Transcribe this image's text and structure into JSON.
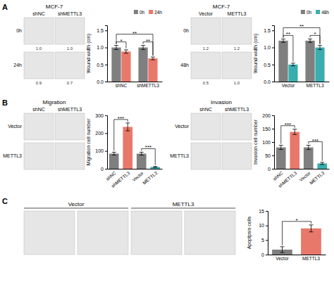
{
  "chart_data": [
    {
      "type": "bar",
      "panel_label": "A",
      "title": "MCF-7",
      "image_columns": [
        "shNC",
        "shMETTL3"
      ],
      "image_rows": [
        "0h",
        "24h"
      ],
      "image_labels": [
        "1.0",
        "1.0",
        "0.9",
        "0.7"
      ],
      "categories": [
        "shNC",
        "shMETTL3"
      ],
      "series": [
        {
          "name": "0h",
          "color": "#7f7f7f",
          "values": [
            1.0,
            1.0
          ],
          "errors": [
            0.06,
            0.06
          ]
        },
        {
          "name": "24h",
          "color": "#e8786a",
          "values": [
            0.88,
            0.68
          ],
          "errors": [
            0.05,
            0.04
          ]
        }
      ],
      "y_label": "Wound width (cm)",
      "ylim": [
        0,
        1.65
      ],
      "yticks": [
        {
          "value": 0,
          "label": "0.0"
        },
        0.5,
        {
          "value": 1,
          "label": "1.0"
        },
        1.5
      ],
      "legend": "upper right",
      "annotations": [
        {
          "text": "*",
          "categories": [
            "shNC"
          ]
        },
        {
          "text": "**",
          "categories": [
            "shMETTL3"
          ]
        },
        {
          "text": "**",
          "categories": [
            "shNC",
            "shMETTL3"
          ]
        }
      ]
    },
    {
      "type": "bar",
      "title": "MCF-7",
      "image_columns": [
        "Vector",
        "METTL3"
      ],
      "image_rows": [
        "0h",
        "48h"
      ],
      "image_labels": [
        "1.2",
        "1.2",
        "0.5",
        "1.0"
      ],
      "categories": [
        "Vector",
        "METTL3"
      ],
      "series": [
        {
          "name": "0h",
          "color": "#7f7f7f",
          "values": [
            1.2,
            1.2
          ],
          "errors": [
            0.05,
            0.05
          ]
        },
        {
          "name": "48h",
          "color": "#3aaeae",
          "values": [
            0.5,
            1.0
          ],
          "errors": [
            0.04,
            0.06
          ]
        }
      ],
      "y_label": "Wound width (cm)",
      "ylim": [
        0,
        1.65
      ],
      "yticks": [
        {
          "value": 0,
          "label": "0.0"
        },
        0.5,
        {
          "value": 1,
          "label": "1.0"
        },
        1.5
      ],
      "legend": "upper right",
      "annotations": [
        {
          "text": "**",
          "categories": [
            "Vector"
          ]
        },
        {
          "text": "*",
          "categories": [
            "METTL3"
          ]
        },
        {
          "text": "**",
          "categories": [
            "Vector",
            "METTL3"
          ]
        }
      ]
    },
    {
      "type": "bar",
      "panel_label": "B",
      "title": "Migration",
      "image_columns": [
        "shNC",
        "shMETTL3"
      ],
      "image_rows": [
        "Vector",
        "METTL3"
      ],
      "categories": [
        "shNC",
        "shMETTL3",
        "Vector",
        "METTL3"
      ],
      "values": [
        85,
        235,
        85,
        10
      ],
      "errors": [
        8,
        22,
        8,
        3
      ],
      "colors": [
        "#7f7f7f",
        "#e8786a",
        "#7f7f7f",
        "#3aaeae"
      ],
      "y_label": "Migration cell number",
      "ylim": [
        0,
        300
      ],
      "yticks": [
        0,
        100,
        200,
        300
      ],
      "annotations": [
        {
          "text": "***",
          "categories": [
            "shNC",
            "shMETTL3"
          ]
        },
        {
          "text": "***",
          "categories": [
            "Vector",
            "METTL3"
          ]
        }
      ]
    },
    {
      "type": "bar",
      "title": "Invasion",
      "image_columns": [
        "shNC",
        "shMETTL3"
      ],
      "image_rows": [
        "Vector",
        "METTL3"
      ],
      "categories": [
        "shNC",
        "shMETTL3",
        "Vector",
        "METTL3"
      ],
      "values": [
        80,
        138,
        80,
        20
      ],
      "errors": [
        8,
        10,
        8,
        4
      ],
      "colors": [
        "#7f7f7f",
        "#e8786a",
        "#7f7f7f",
        "#3aaeae"
      ],
      "y_label": "Invasion cell number",
      "ylim": [
        0,
        200
      ],
      "yticks": [
        0,
        50,
        100,
        150,
        200
      ],
      "annotations": [
        {
          "text": "***",
          "categories": [
            "shNC",
            "shMETTL3"
          ]
        },
        {
          "text": "***",
          "categories": [
            "Vector",
            "METTL3"
          ]
        }
      ]
    },
    {
      "type": "bar",
      "panel_label": "C",
      "image_groups": [
        "Vector",
        "METTL3"
      ],
      "categories": [
        "Vector",
        "METTL3"
      ],
      "values": [
        1.7,
        9.0
      ],
      "errors": [
        1.0,
        1.2
      ],
      "colors": [
        "#7f7f7f",
        "#e8786a"
      ],
      "y_label": "Apoptpsis cells",
      "ylim": [
        0,
        15
      ],
      "yticks": [
        0,
        5,
        10,
        15
      ],
      "annotations": [
        {
          "text": "*",
          "categories": [
            "Vector",
            "METTL3"
          ]
        }
      ]
    }
  ]
}
